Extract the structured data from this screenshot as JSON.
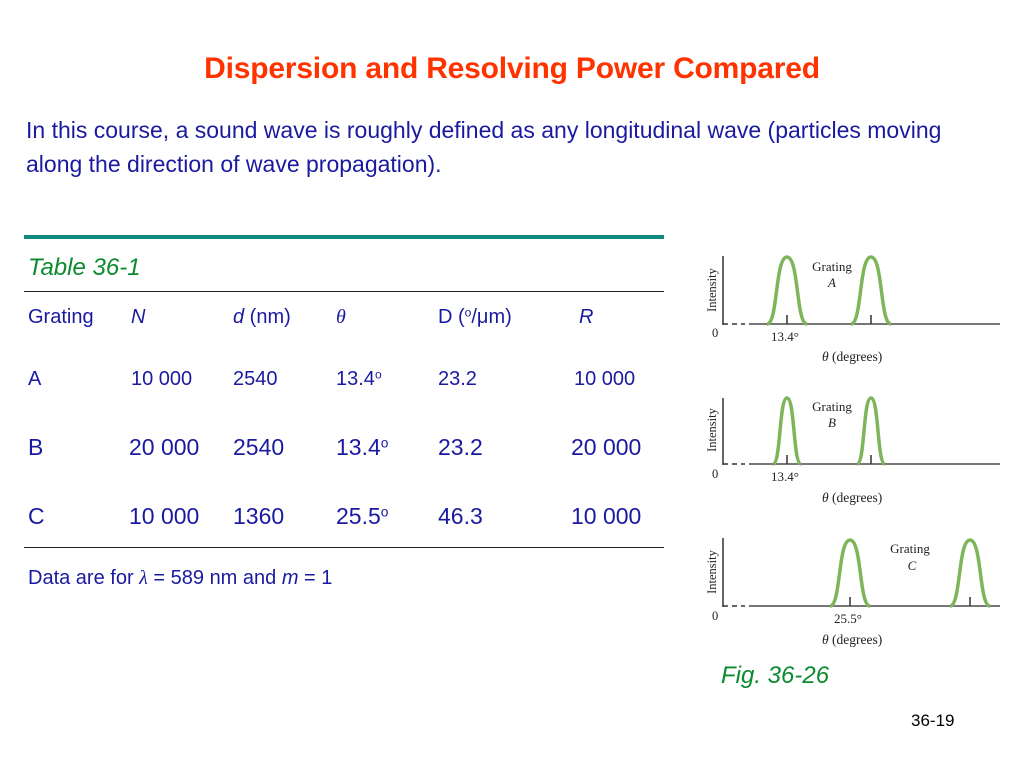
{
  "title": "Dispersion and Resolving Power Compared",
  "intro_text": "In this course, a sound wave is roughly defined as any longitudinal wave (particles moving along the direction of wave propagation).",
  "table": {
    "caption": "Table 36-1",
    "headers": {
      "grating": "Grating",
      "N": "N",
      "d_symbol": "d",
      "d_unit": " (nm)",
      "theta": "θ",
      "D_prefix": "D (",
      "D_degree": "o",
      "D_slash": "/",
      "D_mu": "μ",
      "D_suffix": "m)",
      "R": "R"
    },
    "rows": [
      {
        "grating": "A",
        "N": "10 000",
        "d": "2540",
        "theta": "13.4",
        "theta_unit": "o",
        "D": "23.2",
        "R": "10 000"
      },
      {
        "grating": "B",
        "N": "20 000",
        "d": "2540",
        "theta": "13.4",
        "theta_unit": "o",
        "D": "23.2",
        "R": "20 000"
      },
      {
        "grating": "C",
        "N": "10 000",
        "d": "1360",
        "theta": "25.5",
        "theta_unit": "o",
        "D": "46.3",
        "R": "10 000"
      }
    ],
    "note": {
      "prefix": "Data are for ",
      "lambda": "λ",
      "middle": " = 589 nm and ",
      "m": "m",
      "suffix": " = 1"
    }
  },
  "figures": [
    {
      "grating_label": "Grating",
      "grating_letter": "A",
      "ylabel": "Intensity",
      "origin": "0",
      "angle_label": "13.4°",
      "xlabel_theta": "θ",
      "xlabel_rest": " (degrees)"
    },
    {
      "grating_label": "Grating",
      "grating_letter": "B",
      "ylabel": "Intensity",
      "origin": "0",
      "angle_label": "13.4°",
      "xlabel_theta": "θ",
      "xlabel_rest": " (degrees)"
    },
    {
      "grating_label": "Grating",
      "grating_letter": "C",
      "ylabel": "Intensity",
      "origin": "0",
      "angle_label": "25.5°",
      "xlabel_theta": "θ",
      "xlabel_rest": " (degrees)"
    }
  ],
  "figure_caption": "Fig. 36-26",
  "slide_number": "36-19",
  "colors": {
    "title": "#ff3300",
    "body_text": "#1a1aa0",
    "caption": "#0c8a2e",
    "rule": "#0f8a7e",
    "peak": "#7fb55a"
  }
}
